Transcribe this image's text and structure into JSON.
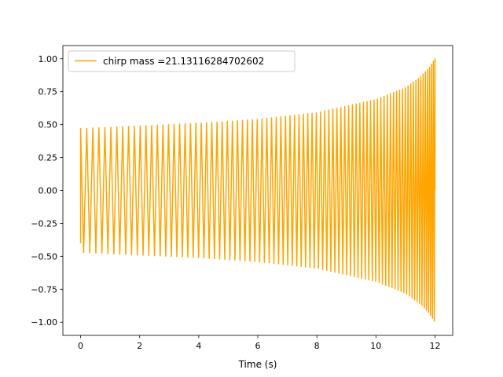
{
  "chart_data": {
    "type": "line",
    "title": "",
    "xlabel": "Time (s)",
    "ylabel": "",
    "xlim": [
      -0.6,
      12.6
    ],
    "ylim": [
      -1.1,
      1.1
    ],
    "x_ticks": [
      0,
      2,
      4,
      6,
      8,
      10,
      12
    ],
    "x_tick_labels": [
      "0",
      "2",
      "4",
      "6",
      "8",
      "10",
      "12"
    ],
    "y_ticks": [
      1.0,
      0.75,
      0.5,
      0.25,
      0.0,
      -0.25,
      -0.5,
      -0.75,
      -1.0
    ],
    "y_tick_labels": [
      "1.00",
      "0.75",
      "0.50",
      "0.25",
      "0.00",
      "−0.25",
      "−0.50",
      "−0.75",
      "−1.00"
    ],
    "grid": false,
    "legend_position": "top-left",
    "series": [
      {
        "name": "chirp mass =21.13116284702602",
        "color": "#ffa500",
        "x_start": 0,
        "x_end": 12,
        "start_value": -0.4,
        "envelope": [
          {
            "t": 0,
            "amp": 0.47
          },
          {
            "t": 2,
            "amp": 0.49
          },
          {
            "t": 4,
            "amp": 0.51
          },
          {
            "t": 6,
            "amp": 0.54
          },
          {
            "t": 8,
            "amp": 0.59
          },
          {
            "t": 10,
            "amp": 0.69
          },
          {
            "t": 11,
            "amp": 0.78
          },
          {
            "t": 11.5,
            "amp": 0.86
          },
          {
            "t": 11.8,
            "amp": 0.93
          },
          {
            "t": 12,
            "amp": 1.0
          }
        ]
      }
    ]
  }
}
